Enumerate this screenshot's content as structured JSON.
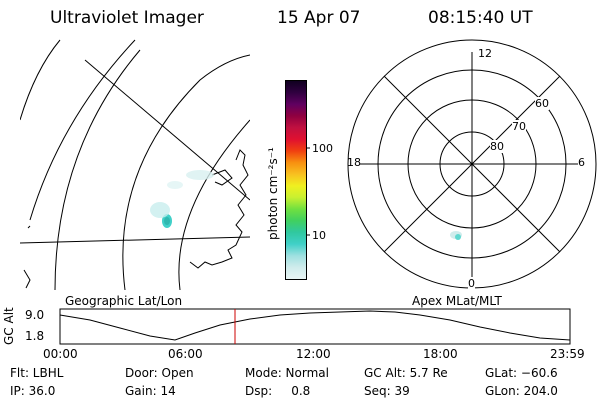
{
  "header": {
    "instrument": "Ultraviolet Imager",
    "date": "15 Apr 07",
    "time": "08:15:40 UT"
  },
  "colorbar": {
    "unit_label": "photon cm⁻²s⁻¹",
    "tick_high": "100",
    "tick_low": "10",
    "colors": [
      "#e8f4f4",
      "#d0ecec",
      "#9ee0e0",
      "#40d0c8",
      "#30c8a0",
      "#40d060",
      "#70e040",
      "#c8f030",
      "#f0f020",
      "#f8c020",
      "#f89010",
      "#f04010",
      "#e01030",
      "#c01040",
      "#900040",
      "#600060",
      "#300040",
      "#100020"
    ]
  },
  "geo_panel": {
    "label": "Geographic Lat/Lon"
  },
  "polar_panel": {
    "label": "Apex MLat/MLT",
    "mlt_labels": {
      "top": "12",
      "left": "18",
      "right": "6",
      "bottom": "0"
    },
    "lat_labels": [
      "60",
      "70",
      "80"
    ]
  },
  "altitude_plot": {
    "ylabel": "GC Alt",
    "ytick_high": "9.0",
    "ytick_low": "1.8",
    "xticks": [
      "00:00",
      "06:00",
      "12:00",
      "18:00",
      "23:59"
    ],
    "marker_color": "#cc0000"
  },
  "info": {
    "flt": "Flt: LBHL",
    "ip": "IP: 36.0",
    "door": "Door: Open",
    "gain": "Gain: 14",
    "mode": "Mode: Normal",
    "dsp": "Dsp:     0.8",
    "gc_alt": "GC Alt: 5.7 Re",
    "seq": "Seq: 39",
    "glat": "GLat: −60.6",
    "glon": "GLon: 204.0"
  }
}
